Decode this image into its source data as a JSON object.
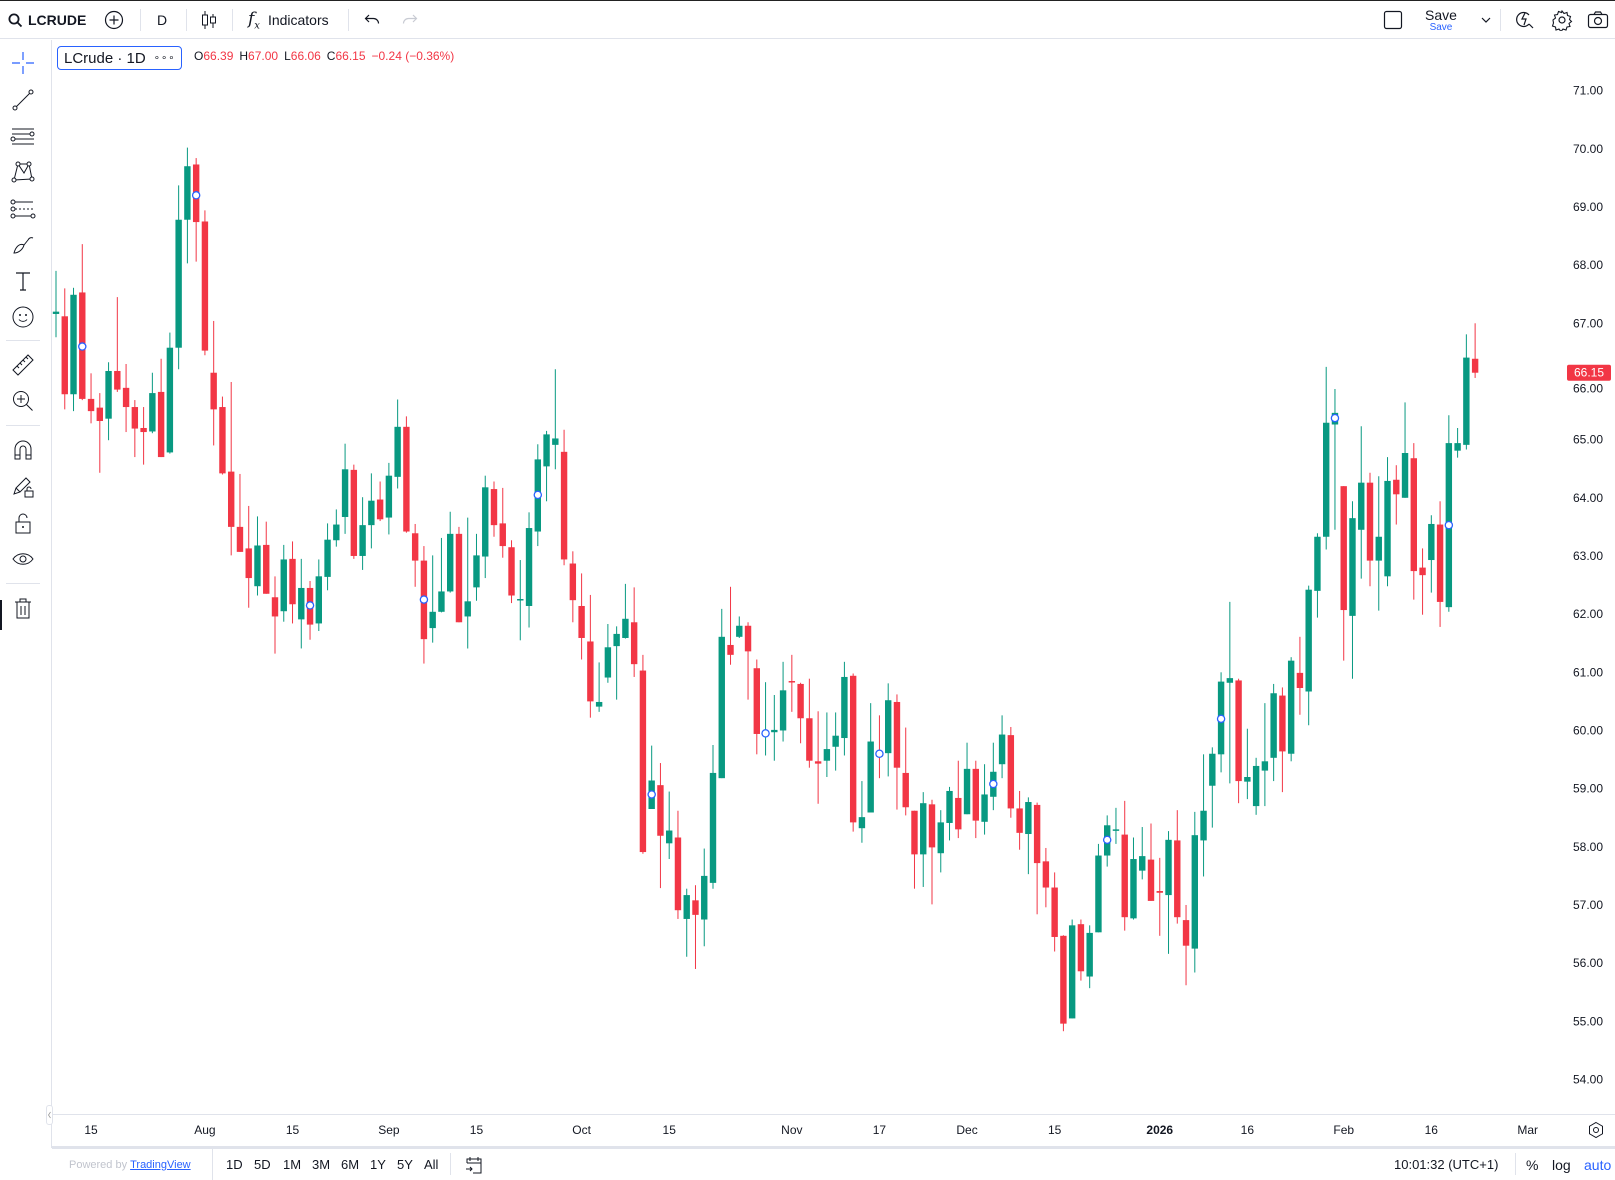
{
  "toolbar": {
    "symbol": "LCRUDE",
    "interval": "D",
    "indicators_label": "Indicators",
    "save_label": "Save",
    "save_sub_label": "Save",
    "icons": [
      "search-icon",
      "add-symbol-icon",
      "candles-icon",
      "fx-icon",
      "undo-icon",
      "redo-icon",
      "layout-square-icon",
      "chevron-down-icon",
      "quick-search-icon",
      "settings-icon",
      "camera-icon"
    ]
  },
  "legend": {
    "title": "LCrude · 1D",
    "more": "∘∘∘",
    "o_label": "O",
    "o": "66.39",
    "h_label": "H",
    "h": "67.00",
    "l_label": "L",
    "l": "66.06",
    "c_label": "C",
    "c": "66.15",
    "change": "−0.24 (−0.36%)"
  },
  "left_tools": [
    "crosshair-icon",
    "trend-line-icon",
    "horizontal-lines-icon",
    "pattern-icon",
    "fib-icon",
    "brush-icon",
    "text-icon",
    "emoji-icon",
    "ruler-icon",
    "zoom-in-icon",
    "magnet-icon",
    "lock-drawing-icon",
    "unlock-icon",
    "eye-icon",
    "trash-icon"
  ],
  "colors": {
    "up": "#089981",
    "down": "#f23645",
    "accent": "#2962ff",
    "marker": "#2962ff"
  },
  "chart_data": {
    "type": "candlestick",
    "symbol": "LCrude",
    "interval": "1D",
    "ylim": [
      53.5,
      71.5
    ],
    "price_ticks": [
      "71.00",
      "70.00",
      "69.00",
      "68.00",
      "67.00",
      "66.00",
      "65.00",
      "64.00",
      "63.00",
      "62.00",
      "61.00",
      "60.00",
      "59.00",
      "58.00",
      "57.00",
      "56.00",
      "55.00",
      "54.00"
    ],
    "last_price": "66.15",
    "x_ticks": [
      {
        "label": "15",
        "bar": 4
      },
      {
        "label": "Aug",
        "bar": 17
      },
      {
        "label": "15",
        "bar": 27
      },
      {
        "label": "Sep",
        "bar": 38
      },
      {
        "label": "15",
        "bar": 48
      },
      {
        "label": "Oct",
        "bar": 60
      },
      {
        "label": "15",
        "bar": 70
      },
      {
        "label": "Nov",
        "bar": 84
      },
      {
        "label": "17",
        "bar": 94
      },
      {
        "label": "Dec",
        "bar": 104
      },
      {
        "label": "15",
        "bar": 114
      },
      {
        "label": "2026",
        "bar": 126
      },
      {
        "label": "16",
        "bar": 136
      },
      {
        "label": "Feb",
        "bar": 147
      },
      {
        "label": "16",
        "bar": 157
      },
      {
        "label": "Mar",
        "bar": 168
      }
    ],
    "candles_ohlc": [
      [
        67.16,
        67.9,
        66.76,
        67.2
      ],
      [
        67.12,
        67.6,
        65.52,
        65.78
      ],
      [
        65.78,
        67.61,
        65.49,
        67.49
      ],
      [
        67.53,
        68.36,
        65.68,
        65.7
      ],
      [
        65.7,
        66.14,
        65.28,
        65.49
      ],
      [
        65.55,
        65.8,
        64.43,
        65.32
      ],
      [
        65.36,
        66.33,
        64.99,
        66.18
      ],
      [
        66.18,
        67.45,
        65.82,
        65.86
      ],
      [
        65.89,
        66.3,
        65.13,
        65.56
      ],
      [
        65.56,
        65.68,
        64.7,
        65.19
      ],
      [
        65.2,
        65.56,
        64.57,
        65.13
      ],
      [
        65.14,
        66.15,
        65.11,
        65.8
      ],
      [
        65.82,
        66.39,
        64.7,
        64.7
      ],
      [
        64.78,
        66.84,
        64.76,
        66.58
      ],
      [
        66.58,
        69.37,
        66.21,
        68.78
      ],
      [
        68.78,
        70.02,
        68.03,
        69.7
      ],
      [
        69.73,
        69.84,
        68.06,
        68.74
      ],
      [
        68.75,
        68.94,
        66.45,
        66.53
      ],
      [
        66.15,
        67.04,
        64.9,
        65.52
      ],
      [
        65.56,
        65.74,
        64.4,
        64.42
      ],
      [
        64.45,
        65.99,
        63.01,
        63.5
      ],
      [
        63.5,
        64.41,
        63.07,
        63.07
      ],
      [
        63.13,
        63.86,
        62.11,
        62.62
      ],
      [
        62.48,
        63.68,
        62.32,
        63.18
      ],
      [
        63.19,
        63.59,
        62.35,
        62.35
      ],
      [
        62.29,
        62.65,
        61.32,
        61.96
      ],
      [
        62.05,
        63.19,
        61.87,
        62.94
      ],
      [
        62.95,
        63.25,
        61.84,
        62.17
      ],
      [
        61.91,
        62.95,
        61.41,
        62.45
      ],
      [
        62.45,
        62.57,
        61.56,
        61.82
      ],
      [
        61.84,
        62.94,
        61.71,
        62.65
      ],
      [
        62.64,
        63.56,
        62.41,
        63.28
      ],
      [
        63.27,
        63.8,
        63.16,
        63.54
      ],
      [
        63.67,
        64.93,
        63.38,
        64.49
      ],
      [
        64.48,
        64.57,
        62.95,
        63.0
      ],
      [
        63.0,
        64.01,
        62.76,
        63.53
      ],
      [
        63.53,
        64.42,
        63.13,
        63.95
      ],
      [
        63.97,
        64.28,
        63.6,
        63.63
      ],
      [
        63.66,
        64.6,
        63.37,
        64.38
      ],
      [
        64.36,
        65.69,
        64.16,
        65.22
      ],
      [
        65.22,
        65.4,
        63.4,
        63.42
      ],
      [
        63.39,
        63.55,
        62.47,
        62.92
      ],
      [
        62.92,
        63.17,
        61.15,
        61.57
      ],
      [
        61.76,
        63.01,
        61.51,
        62.04
      ],
      [
        62.04,
        63.31,
        62.03,
        62.39
      ],
      [
        62.39,
        63.76,
        62.37,
        63.38
      ],
      [
        63.38,
        63.5,
        61.86,
        61.86
      ],
      [
        61.96,
        63.66,
        61.41,
        62.22
      ],
      [
        62.46,
        63.38,
        62.23,
        63.01
      ],
      [
        62.99,
        64.38,
        62.62,
        64.18
      ],
      [
        64.15,
        64.28,
        63.33,
        63.53
      ],
      [
        63.56,
        64.17,
        62.97,
        63.17
      ],
      [
        63.15,
        63.27,
        62.19,
        62.32
      ],
      [
        62.24,
        62.93,
        61.55,
        62.26
      ],
      [
        62.14,
        63.75,
        61.77,
        63.48
      ],
      [
        63.42,
        64.92,
        63.17,
        64.66
      ],
      [
        64.54,
        65.15,
        63.94,
        65.09
      ],
      [
        64.91,
        66.21,
        64.49,
        65.02
      ],
      [
        64.79,
        65.17,
        62.84,
        62.94
      ],
      [
        62.87,
        63.08,
        61.86,
        62.24
      ],
      [
        62.14,
        62.7,
        61.22,
        61.59
      ],
      [
        61.53,
        62.33,
        60.22,
        60.5
      ],
      [
        60.41,
        61.17,
        60.32,
        60.49
      ],
      [
        60.91,
        61.83,
        60.82,
        61.43
      ],
      [
        61.45,
        61.79,
        60.53,
        61.66
      ],
      [
        61.59,
        62.52,
        61.58,
        61.92
      ],
      [
        61.86,
        62.46,
        60.92,
        61.14
      ],
      [
        61.03,
        61.3,
        57.88,
        57.91
      ],
      [
        58.65,
        59.74,
        58.65,
        59.14
      ],
      [
        59.06,
        59.44,
        57.29,
        58.19
      ],
      [
        58.06,
        58.95,
        57.79,
        58.28
      ],
      [
        58.16,
        58.62,
        56.76,
        56.91
      ],
      [
        56.76,
        57.28,
        56.11,
        57.17
      ],
      [
        57.08,
        57.34,
        55.9,
        56.83
      ],
      [
        56.75,
        57.97,
        56.29,
        57.5
      ],
      [
        57.38,
        59.75,
        57.28,
        59.27
      ],
      [
        59.18,
        62.09,
        59.18,
        61.61
      ],
      [
        61.47,
        62.47,
        61.13,
        61.3
      ],
      [
        61.61,
        61.96,
        61.59,
        61.8
      ],
      [
        61.8,
        61.86,
        60.53,
        61.36
      ],
      [
        61.07,
        61.22,
        59.59,
        59.94
      ],
      [
        59.95,
        60.83,
        59.57,
        59.97
      ],
      [
        59.97,
        60.61,
        59.48,
        60.01
      ],
      [
        60.0,
        61.18,
        59.81,
        60.69
      ],
      [
        60.85,
        61.3,
        60.32,
        60.83
      ],
      [
        60.8,
        60.82,
        59.78,
        60.21
      ],
      [
        60.21,
        60.89,
        59.36,
        59.48
      ],
      [
        59.47,
        60.33,
        58.74,
        59.43
      ],
      [
        59.48,
        60.31,
        59.2,
        59.68
      ],
      [
        59.72,
        60.31,
        59.31,
        59.91
      ],
      [
        59.87,
        61.18,
        59.57,
        60.92
      ],
      [
        60.94,
        60.98,
        58.26,
        58.42
      ],
      [
        58.32,
        59.13,
        58.07,
        58.51
      ],
      [
        58.59,
        60.47,
        58.59,
        59.81
      ],
      [
        59.6,
        60.26,
        59.18,
        59.55
      ],
      [
        59.61,
        60.81,
        59.21,
        60.52
      ],
      [
        60.49,
        60.62,
        58.64,
        59.36
      ],
      [
        59.27,
        60.05,
        58.54,
        58.68
      ],
      [
        58.62,
        58.62,
        57.28,
        57.87
      ],
      [
        57.87,
        58.94,
        57.31,
        58.75
      ],
      [
        58.73,
        58.81,
        57.01,
        57.99
      ],
      [
        57.89,
        58.63,
        57.56,
        58.42
      ],
      [
        58.41,
        59.03,
        58.11,
        58.96
      ],
      [
        58.84,
        59.48,
        58.15,
        58.3
      ],
      [
        58.56,
        59.79,
        58.56,
        59.34
      ],
      [
        59.34,
        59.48,
        58.15,
        58.45
      ],
      [
        58.43,
        59.42,
        58.21,
        58.9
      ],
      [
        58.86,
        59.79,
        58.63,
        59.29
      ],
      [
        59.42,
        60.26,
        59.18,
        59.93
      ],
      [
        59.92,
        60.06,
        58.5,
        58.66
      ],
      [
        58.66,
        58.96,
        57.95,
        58.24
      ],
      [
        58.22,
        58.85,
        57.53,
        58.77
      ],
      [
        58.72,
        58.76,
        56.84,
        57.72
      ],
      [
        57.75,
        57.98,
        56.96,
        57.3
      ],
      [
        57.3,
        57.56,
        56.2,
        56.45
      ],
      [
        56.47,
        56.48,
        54.83,
        54.96
      ],
      [
        55.05,
        56.75,
        55.05,
        56.65
      ],
      [
        56.67,
        56.75,
        55.7,
        55.86
      ],
      [
        55.77,
        56.65,
        55.57,
        56.52
      ],
      [
        56.53,
        58.05,
        56.53,
        57.85
      ],
      [
        57.85,
        58.54,
        57.66,
        58.37
      ],
      [
        58.28,
        58.67,
        58.05,
        58.3
      ],
      [
        58.21,
        58.79,
        56.56,
        56.79
      ],
      [
        56.77,
        58.16,
        56.75,
        57.79
      ],
      [
        57.59,
        58.34,
        57.44,
        57.84
      ],
      [
        57.78,
        58.4,
        57.07,
        57.07
      ],
      [
        57.24,
        57.81,
        56.47,
        57.21
      ],
      [
        57.17,
        58.27,
        56.16,
        58.12
      ],
      [
        58.11,
        58.63,
        56.68,
        56.79
      ],
      [
        56.74,
        57.0,
        55.62,
        56.3
      ],
      [
        56.25,
        58.6,
        55.84,
        58.2
      ],
      [
        58.11,
        59.59,
        57.49,
        58.62
      ],
      [
        59.05,
        59.71,
        58.33,
        59.6
      ],
      [
        59.59,
        61.0,
        59.28,
        60.84
      ],
      [
        60.82,
        62.21,
        59.09,
        60.9
      ],
      [
        60.86,
        60.89,
        58.75,
        59.13
      ],
      [
        59.12,
        60.03,
        58.82,
        59.2
      ],
      [
        58.7,
        59.53,
        58.55,
        59.39
      ],
      [
        59.31,
        60.47,
        58.7,
        59.47
      ],
      [
        59.53,
        60.8,
        59.13,
        60.64
      ],
      [
        60.6,
        60.74,
        58.94,
        59.64
      ],
      [
        59.6,
        61.26,
        59.47,
        61.2
      ],
      [
        60.99,
        61.61,
        60.27,
        60.73
      ],
      [
        60.67,
        62.49,
        60.09,
        62.42
      ],
      [
        62.4,
        63.39,
        61.94,
        63.33
      ],
      [
        63.33,
        66.25,
        63.11,
        65.29
      ],
      [
        65.26,
        65.87,
        63.45,
        65.46
      ],
      [
        64.2,
        64.2,
        61.2,
        62.07
      ],
      [
        61.97,
        63.94,
        60.89,
        63.65
      ],
      [
        63.45,
        65.23,
        62.61,
        64.26
      ],
      [
        64.26,
        64.43,
        62.48,
        62.92
      ],
      [
        62.92,
        64.37,
        62.06,
        63.33
      ],
      [
        62.65,
        64.7,
        62.48,
        64.29
      ],
      [
        64.31,
        64.56,
        63.54,
        64.06
      ],
      [
        64.0,
        65.64,
        64.0,
        64.77
      ],
      [
        64.68,
        64.94,
        62.25,
        62.74
      ],
      [
        62.8,
        63.13,
        61.99,
        62.67
      ],
      [
        62.93,
        63.7,
        62.37,
        63.55
      ],
      [
        63.54,
        63.94,
        61.78,
        62.21
      ],
      [
        62.12,
        65.42,
        62.04,
        64.94
      ],
      [
        64.81,
        65.2,
        64.69,
        64.94
      ],
      [
        64.91,
        66.81,
        64.83,
        66.41
      ],
      [
        66.39,
        67.0,
        66.06,
        66.15
      ]
    ],
    "markers": [
      {
        "bar": 3,
        "price": 66.6
      },
      {
        "bar": 16,
        "price": 69.2
      },
      {
        "bar": 29,
        "price": 62.15
      },
      {
        "bar": 42,
        "price": 62.25
      },
      {
        "bar": 55,
        "price": 64.05
      },
      {
        "bar": 68,
        "price": 58.9
      },
      {
        "bar": 81,
        "price": 59.95
      },
      {
        "bar": 94,
        "price": 59.6
      },
      {
        "bar": 107,
        "price": 59.08
      },
      {
        "bar": 120,
        "price": 58.12
      },
      {
        "bar": 133,
        "price": 60.2
      },
      {
        "bar": 146,
        "price": 65.37
      },
      {
        "bar": 159,
        "price": 63.53
      }
    ]
  },
  "bottom": {
    "powered_by": "Powered by",
    "brand": "TradingView",
    "ranges": [
      "1D",
      "5D",
      "1M",
      "3M",
      "6M",
      "1Y",
      "5Y",
      "All"
    ],
    "clock": "10:01:32 (UTC+1)",
    "percent": "%",
    "log": "log",
    "auto": "auto"
  }
}
